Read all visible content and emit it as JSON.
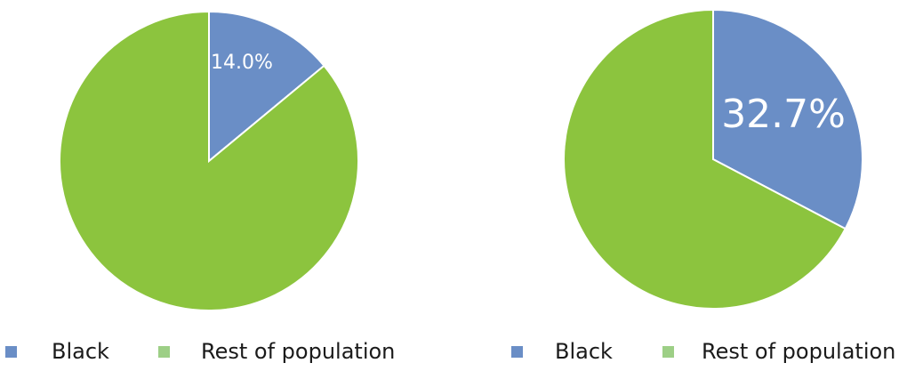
{
  "chart_data": [
    {
      "type": "pie",
      "slices": [
        {
          "label": "Black",
          "value": 14.0,
          "display": "14.0%"
        },
        {
          "label": "Rest of population",
          "value": 86.0
        }
      ],
      "legend": [
        "Black",
        "Rest of population"
      ],
      "legend_position": "bottom",
      "colors": [
        "#6a8ec6",
        "#8cc43e"
      ],
      "legend_colors": [
        "#6a8ec6",
        "#9dcf86"
      ]
    },
    {
      "type": "pie",
      "slices": [
        {
          "label": "Black",
          "value": 32.7,
          "display": "32.7%"
        },
        {
          "label": "Rest of population",
          "value": 67.3
        }
      ],
      "legend": [
        "Black",
        "Rest of population"
      ],
      "legend_position": "bottom",
      "colors": [
        "#6a8ec6",
        "#8cc43e"
      ],
      "legend_colors": [
        "#6a8ec6",
        "#9dcf86"
      ]
    }
  ]
}
